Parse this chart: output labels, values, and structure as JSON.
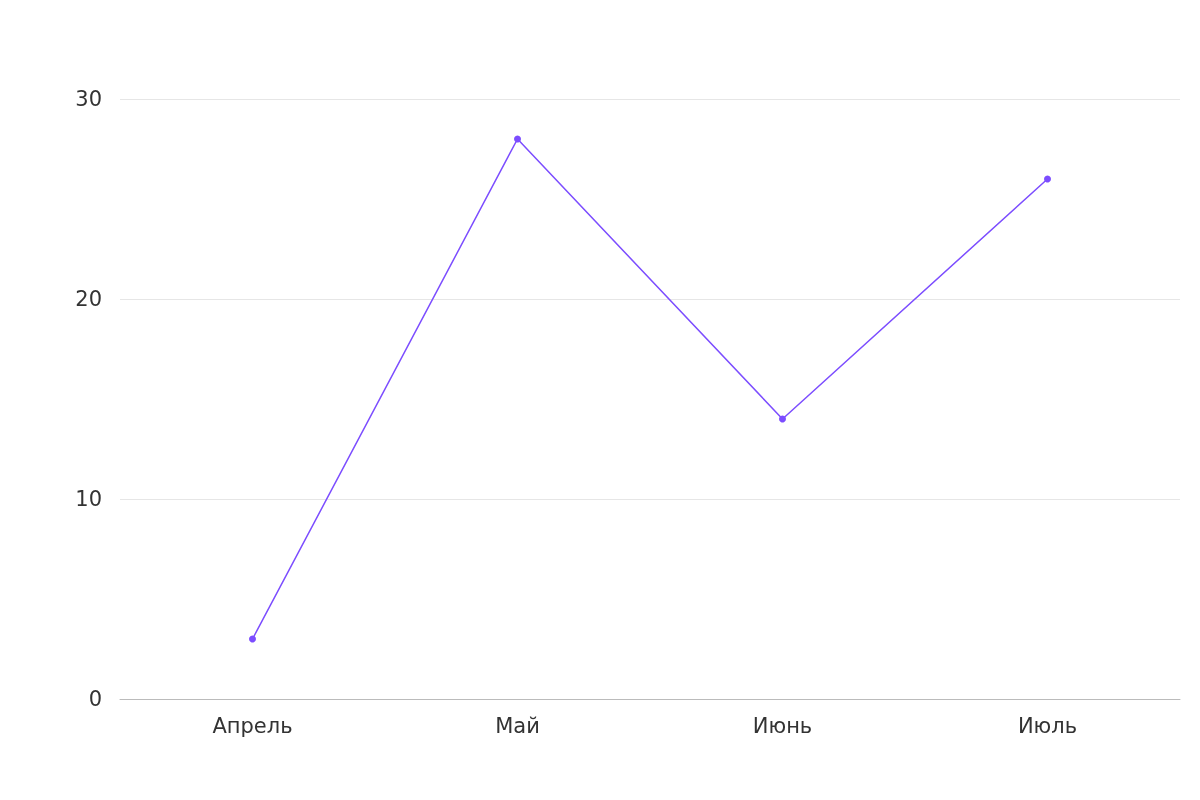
{
  "chart_data": {
    "type": "line",
    "categories": [
      "Апрель",
      "Май",
      "Июнь",
      "Июль"
    ],
    "series": [
      {
        "color": "#7c4dff",
        "values": [
          3,
          28,
          14,
          26
        ]
      }
    ],
    "ylim": [
      0,
      30
    ],
    "yticks": [
      0,
      10,
      20,
      30
    ],
    "grid": "y",
    "marker": "circle",
    "line_style": "solid"
  }
}
